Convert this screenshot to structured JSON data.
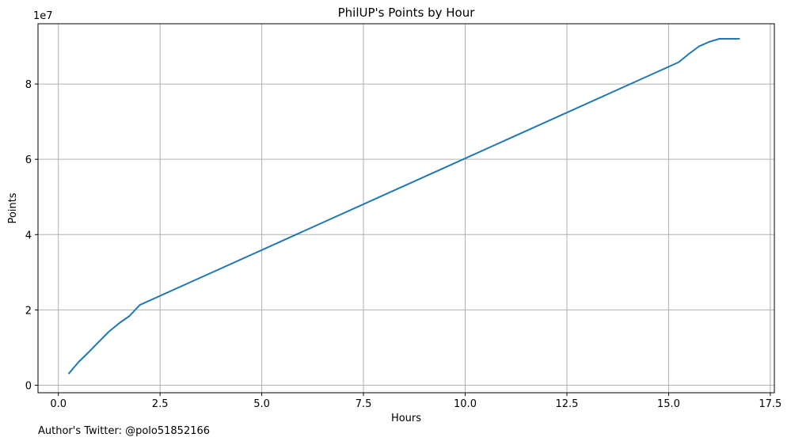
{
  "chart_data": {
    "type": "line",
    "title": "PhilUP's Points by Hour",
    "xlabel": "Hours",
    "ylabel": "Points",
    "y_offset_label": "1e7",
    "xlim": [
      -0.5,
      17.6
    ],
    "ylim": [
      -0.2,
      9.6
    ],
    "y_scale_note": "values in units of 1e7",
    "grid": true,
    "x_ticks": [
      0.0,
      2.5,
      5.0,
      7.5,
      10.0,
      12.5,
      15.0,
      17.5
    ],
    "x_tick_labels": [
      "0.0",
      "2.5",
      "5.0",
      "7.5",
      "10.0",
      "12.5",
      "15.0",
      "17.5"
    ],
    "y_ticks": [
      0,
      2,
      4,
      6,
      8
    ],
    "y_tick_labels": [
      "0",
      "2",
      "4",
      "6",
      "8"
    ],
    "series": [
      {
        "color": "#1f77b4",
        "x": [
          0.25,
          0.5,
          0.75,
          1.0,
          1.25,
          1.5,
          1.75,
          2.0,
          15.25,
          15.5,
          15.75,
          16.0,
          16.25,
          16.5,
          16.75
        ],
        "y": [
          0.3,
          0.62,
          0.88,
          1.16,
          1.43,
          1.65,
          1.84,
          2.13,
          8.58,
          8.8,
          9.0,
          9.12,
          9.2,
          9.2,
          9.2
        ]
      }
    ]
  },
  "footnote": "Author's Twitter: @polo51852166"
}
